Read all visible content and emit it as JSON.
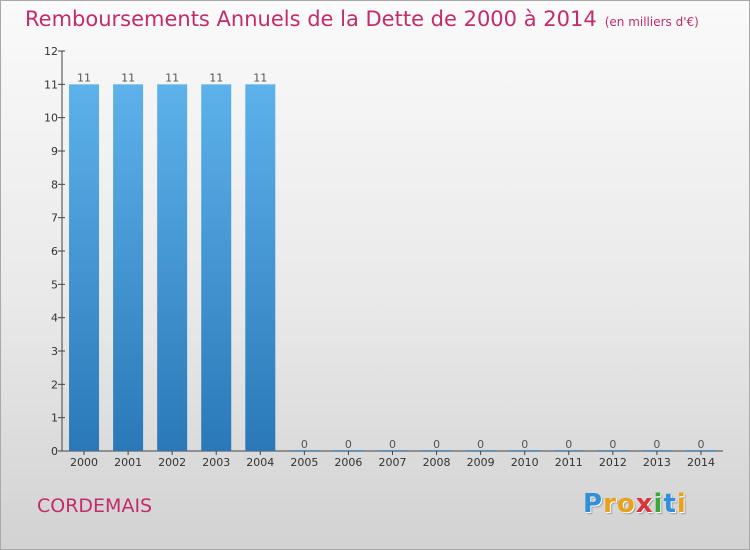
{
  "header": {
    "title": "Remboursements Annuels de la Dette de 2000 à 2014",
    "unit": "(en milliers d'€)"
  },
  "commune": "CORDEMAIS",
  "logo": {
    "letters": [
      "P",
      "r",
      "o",
      "x",
      "i",
      "t",
      "i"
    ],
    "colors": [
      "#2f8fd8",
      "#e8a21a",
      "#e8a21a",
      "#d8343a",
      "#38a838",
      "#2f8fd8",
      "#e8a21a"
    ]
  },
  "colors": {
    "title": "#c42b6b",
    "bar_top": "#5db2ea",
    "bar_bottom": "#2a78b8"
  },
  "chart_data": {
    "type": "bar",
    "title": "Remboursements Annuels de la Dette de 2000 à 2014",
    "categories": [
      "2000",
      "2001",
      "2002",
      "2003",
      "2004",
      "2005",
      "2006",
      "2007",
      "2008",
      "2009",
      "2010",
      "2011",
      "2012",
      "2013",
      "2014"
    ],
    "values": [
      11,
      11,
      11,
      11,
      11,
      0,
      0,
      0,
      0,
      0,
      0,
      0,
      0,
      0,
      0
    ],
    "data_labels": [
      "11",
      "11",
      "11",
      "11",
      "11",
      "0",
      "0",
      "0",
      "0",
      "0",
      "0",
      "0",
      "0",
      "0",
      "0"
    ],
    "ylim": [
      0,
      12
    ],
    "yticks": [
      "0",
      "1",
      "2",
      "3",
      "4",
      "5",
      "6",
      "7",
      "8",
      "9",
      "10",
      "11",
      "12"
    ],
    "grid": false,
    "legend": "none"
  }
}
